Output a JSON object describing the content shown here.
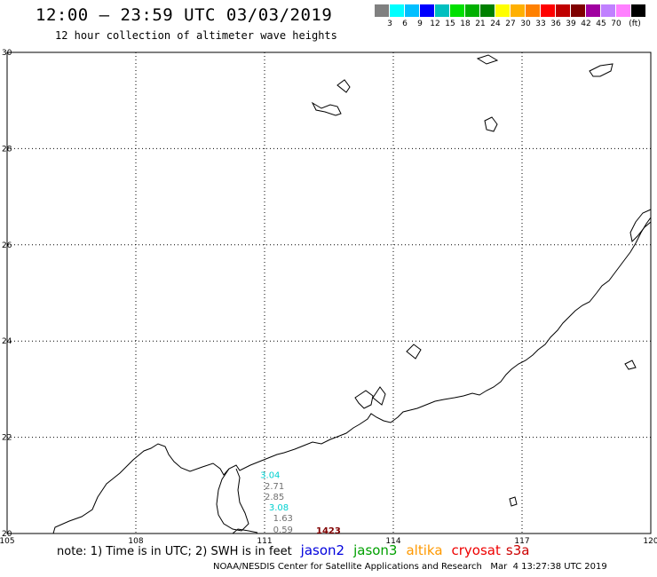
{
  "header": {
    "title": "12:00 — 23:59 UTC 03/03/2019",
    "subtitle": "12 hour collection of altimeter wave heights"
  },
  "colorbar": {
    "colors": [
      "#808080",
      "#00ffff",
      "#00bfff",
      "#0000ff",
      "#00bfbf",
      "#00e000",
      "#00b000",
      "#008000",
      "#ffff00",
      "#ffb000",
      "#ff8000",
      "#ff0000",
      "#c00000",
      "#800000",
      "#a000a0",
      "#c080ff",
      "#ff80ff",
      "#000000"
    ],
    "labels": [
      "3",
      "6",
      "9",
      "12",
      "15",
      "18",
      "21",
      "24",
      "27",
      "30",
      "33",
      "36",
      "39",
      "42",
      "45",
      "70",
      "(ft)"
    ]
  },
  "map": {
    "lon_ticks": [
      "105",
      "108",
      "111",
      "114",
      "117",
      "120"
    ],
    "lat_ticks": [
      "30",
      "28",
      "26",
      "24",
      "22",
      "20"
    ],
    "lon_range": [
      105,
      120
    ],
    "lat_range": [
      20,
      30
    ],
    "swh_values": [
      {
        "value": "3.04",
        "color": "#00d0d0",
        "lon": 110.9,
        "lat": 21.15
      },
      {
        "value": "2.71",
        "color": "#707070",
        "lon": 111.0,
        "lat": 20.92
      },
      {
        "value": "2.85",
        "color": "#707070",
        "lon": 111.0,
        "lat": 20.7
      },
      {
        "value": "3.08",
        "color": "#00d0d0",
        "lon": 111.1,
        "lat": 20.48
      },
      {
        "value": "1.63",
        "color": "#707070",
        "lon": 111.2,
        "lat": 20.26
      },
      {
        "value": "0.59",
        "color": "#707070",
        "lon": 111.2,
        "lat": 20.02
      }
    ],
    "pass_id": {
      "value": "1423",
      "color": "#800000",
      "lon": 112.2,
      "lat": 20.02
    }
  },
  "legend": {
    "note": "note: 1) Time is in UTC; 2) SWH is in feet",
    "satellites": [
      {
        "name": "jason2",
        "color": "#0000dd"
      },
      {
        "name": "jason3",
        "color": "#00a000"
      },
      {
        "name": "altika",
        "color": "#ff9900"
      },
      {
        "name": "cryosat",
        "color": "#ee0000"
      },
      {
        "name": "s3a",
        "color": "#cc0000"
      }
    ]
  },
  "credit": {
    "text": "NOAA/NESDIS Center for Satellite Applications and Research",
    "timestamp": "Mar  4 13:27:38 UTC 2019"
  }
}
